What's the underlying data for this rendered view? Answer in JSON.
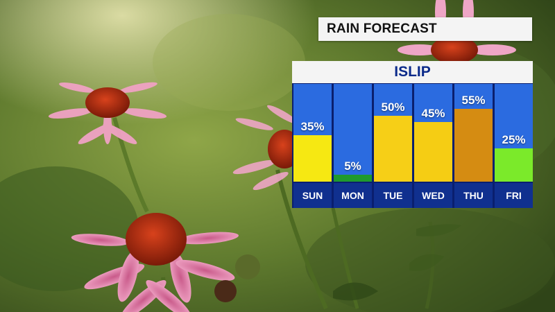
{
  "header": {
    "title": "RAIN FORECAST"
  },
  "chart_data": {
    "type": "bar",
    "title": "ISLIP",
    "categories": [
      "SUN",
      "MON",
      "TUE",
      "WED",
      "THU",
      "FRI"
    ],
    "values": [
      35,
      5,
      50,
      45,
      55,
      25
    ],
    "labels": [
      "35%",
      "5%",
      "50%",
      "45%",
      "55%",
      "25%"
    ],
    "bar_colors": [
      "#f6e812",
      "#1f9a2e",
      "#f6cf17",
      "#f5cd14",
      "#d58c12",
      "#7bea2a"
    ],
    "ylim": [
      0,
      100
    ]
  }
}
